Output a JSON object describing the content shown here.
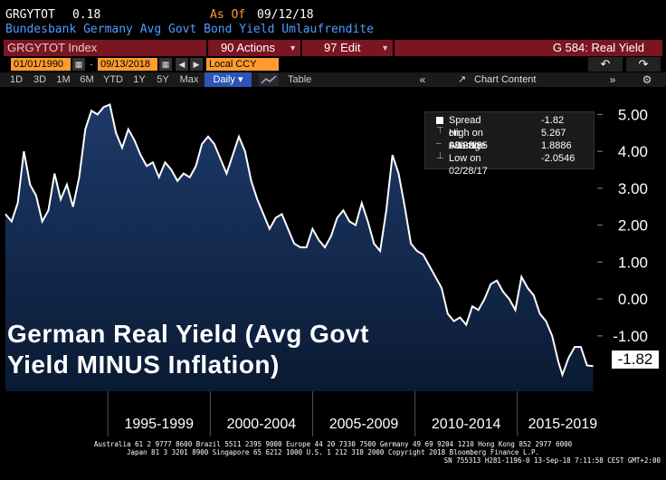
{
  "header": {
    "ticker": "GRGYTOT",
    "value": "0.18",
    "as_of_label": "As Of",
    "as_of_date": "09/12/18",
    "subtitle": "Bundesbank Germany Avg Govt Bond Yield Umlaufrendite"
  },
  "toolbar": {
    "security": "GRGYTOT Index",
    "actions": "90 Actions",
    "edit": "97 Edit",
    "graph_title": "G 584: Real Yield",
    "start_date": "01/01/1990",
    "end_date": "09/13/2018",
    "currency": "Local CCY",
    "periods": [
      "1D",
      "3D",
      "1M",
      "6M",
      "YTD",
      "1Y",
      "5Y",
      "Max",
      "Daily"
    ],
    "active_period": "Daily",
    "table": "Table",
    "collapse": "«",
    "chart_content": "Chart Content",
    "expand": "»"
  },
  "colors": {
    "accent_orange": "#ff9b2f",
    "title_blue": "#4f9cff",
    "bar_red": "#7a1522",
    "area_fill_top": "#1e3a6a",
    "area_fill_bottom": "#0a1a33",
    "line": "#ffffff"
  },
  "icons": {
    "calendar": "calendar-icon",
    "arrow_left": "arrow-left-icon",
    "arrow_right": "arrow-right-icon",
    "undo": "undo-icon",
    "redo": "redo-icon",
    "line_chart": "line-chart-icon",
    "settings": "gear-icon"
  },
  "legend": {
    "rows": [
      {
        "label": "Spread on 9/12/18",
        "value": "-1.82"
      },
      {
        "label": "High on 03/08/95",
        "value": "5.267"
      },
      {
        "label": "Average",
        "value": "1.8886"
      },
      {
        "label": "Low on 02/28/17",
        "value": "-2.0546"
      }
    ]
  },
  "overlay": {
    "line1": "German Real Yield (Avg Govt",
    "line2": "Yield MINUS Inflation)"
  },
  "last_value_label": "-1.82",
  "footer": {
    "line1": "Australia 61 2 9777 8600 Brazil 5511 2395 9000 Europe 44 20 7330 7500 Germany 49 69 9204 1210 Hong Kong 852 2977 6000",
    "line2": "Japan 81 3 3201 8900       Singapore 65 6212 1000       U.S. 1 212 318 2000           Copyright 2018 Bloomberg Finance L.P.",
    "line3": "SN 755313 H281-1196-0 13-Sep-18  7:11:58 CEST GMT+2:00"
  },
  "chart_data": {
    "type": "area",
    "ylim": [
      -2.5,
      5.5
    ],
    "yticks": [
      "5.00",
      "4.00",
      "3.00",
      "2.00",
      "1.00",
      "0.00",
      "-1.00"
    ],
    "xlim": [
      1990.0,
      2018.9
    ],
    "x_bands": [
      "1995-1999",
      "2000-2004",
      "2005-2009",
      "2010-2014",
      "2015-2019"
    ],
    "series": [
      {
        "x": [
          1990.0,
          1990.3,
          1990.6,
          1990.9,
          1991.2,
          1991.5,
          1991.8,
          1992.1,
          1992.4,
          1992.7,
          1993.0,
          1993.3,
          1993.6,
          1993.9,
          1994.2,
          1994.5,
          1994.8,
          1995.1,
          1995.4,
          1995.7,
          1996.0,
          1996.3,
          1996.6,
          1996.9,
          1997.2,
          1997.5,
          1997.8,
          1998.1,
          1998.4,
          1998.7,
          1999.0,
          1999.3,
          1999.6,
          1999.9,
          2000.2,
          2000.5,
          2000.8,
          2001.1,
          2001.4,
          2001.7,
          2002.0,
          2002.3,
          2002.6,
          2002.9,
          2003.2,
          2003.5,
          2003.8,
          2004.1,
          2004.4,
          2004.7,
          2005.0,
          2005.3,
          2005.6,
          2005.9,
          2006.2,
          2006.5,
          2006.8,
          2007.1,
          2007.4,
          2007.7,
          2008.0,
          2008.3,
          2008.6,
          2008.9,
          2009.2,
          2009.5,
          2009.8,
          2010.1,
          2010.4,
          2010.7,
          2011.0,
          2011.3,
          2011.6,
          2011.9,
          2012.2,
          2012.5,
          2012.8,
          2013.1,
          2013.4,
          2013.7,
          2014.0,
          2014.3,
          2014.6,
          2014.9,
          2015.2,
          2015.5,
          2015.8,
          2016.1,
          2016.4,
          2016.7,
          2017.0,
          2017.2,
          2017.5,
          2017.8,
          2018.1,
          2018.4,
          2018.7
        ],
        "values": [
          2.3,
          2.1,
          2.6,
          4.0,
          3.1,
          2.8,
          2.1,
          2.4,
          3.4,
          2.7,
          3.1,
          2.5,
          3.3,
          4.6,
          5.1,
          5.0,
          5.2,
          5.267,
          4.5,
          4.1,
          4.6,
          4.3,
          3.9,
          3.6,
          3.7,
          3.3,
          3.7,
          3.5,
          3.2,
          3.4,
          3.3,
          3.6,
          4.2,
          4.4,
          4.2,
          3.8,
          3.4,
          3.9,
          4.4,
          4.0,
          3.2,
          2.7,
          2.3,
          1.9,
          2.2,
          2.3,
          1.9,
          1.5,
          1.4,
          1.4,
          1.9,
          1.6,
          1.4,
          1.7,
          2.2,
          2.4,
          2.1,
          2.0,
          2.6,
          2.1,
          1.5,
          1.3,
          2.4,
          3.9,
          3.4,
          2.5,
          1.5,
          1.3,
          1.2,
          0.9,
          0.6,
          0.3,
          -0.4,
          -0.6,
          -0.5,
          -0.7,
          -0.2,
          -0.3,
          0.0,
          0.4,
          0.5,
          0.2,
          0.0,
          -0.3,
          0.6,
          0.3,
          0.1,
          -0.4,
          -0.6,
          -1.0,
          -1.7,
          -2.0546,
          -1.6,
          -1.3,
          -1.3,
          -1.8,
          -1.82
        ]
      }
    ]
  }
}
